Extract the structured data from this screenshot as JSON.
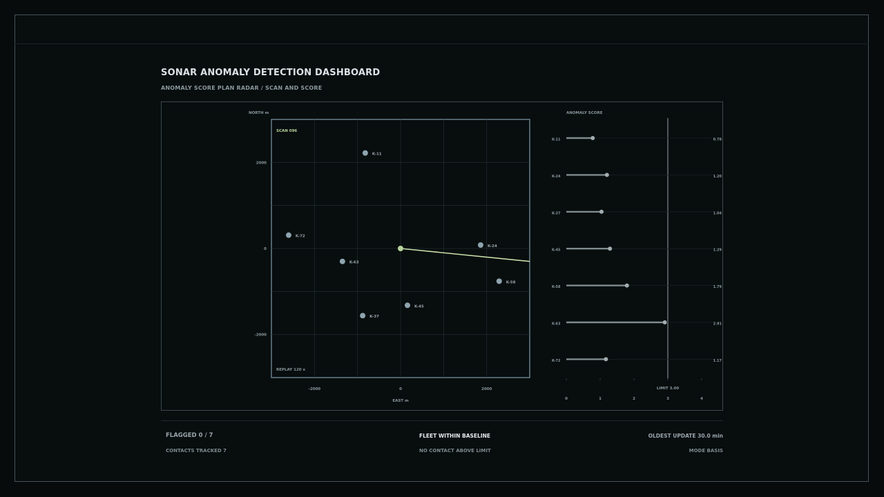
{
  "header": {
    "title": "SONAR ANOMALY DETECTION DASHBOARD",
    "subtitle": "ANOMALY SCORE PLAN RADAR / SCAN AND SCORE"
  },
  "radar": {
    "scan_label": "SCAN 096",
    "replay_label": "REPLAY 120 x"
  },
  "footer": {
    "flagged": "FLAGGED 0 / 7",
    "contacts_tracked": "CONTACTS TRACKED 7",
    "fleet_status": "FLEET WITHIN BASELINE",
    "no_contact": "NO CONTACT ABOVE LIMIT",
    "oldest_update": "OLDEST UPDATE 30.0 min",
    "mode": "MODE BASIS"
  },
  "colors": {
    "background": "#080d0e",
    "contact_dot": "#8ea4ae",
    "own_ship": "#b7d49b",
    "sweep_line": "#c8e0ab",
    "score_bar": "#7f8b8f",
    "limit_line": "#9aa3a6"
  },
  "chart_data": [
    {
      "type": "scatter",
      "xlabel": "EAST m",
      "ylabel": "NORTH m",
      "xlim": [
        -3000,
        3000
      ],
      "ylim": [
        -3000,
        3000
      ],
      "x_ticks": [
        "-2000",
        "0",
        "2000"
      ],
      "x_tick_values": [
        -2000,
        0,
        2000
      ],
      "y_ticks": [
        "2000",
        "0",
        "-2000"
      ],
      "y_tick_values": [
        2000,
        0,
        -2000
      ],
      "grid": true,
      "own_ship": {
        "x": 0,
        "y": 0
      },
      "sweep_end": {
        "x": 3000,
        "y": -300
      },
      "points": [
        {
          "label": "K-11",
          "x": -820,
          "y": 2220
        },
        {
          "label": "K-72",
          "x": -2600,
          "y": 310
        },
        {
          "label": "K-63",
          "x": -1350,
          "y": -300
        },
        {
          "label": "K-24",
          "x": 1860,
          "y": 80
        },
        {
          "label": "K-58",
          "x": 2290,
          "y": -760
        },
        {
          "label": "K-45",
          "x": 160,
          "y": -1320
        },
        {
          "label": "K-37",
          "x": -880,
          "y": -1560
        }
      ]
    },
    {
      "type": "bar",
      "title": "ANOMALY SCORE",
      "orientation": "horizontal",
      "categories": [
        "K-11",
        "K-24",
        "K-37",
        "K-45",
        "K-58",
        "K-63",
        "K-72"
      ],
      "values": [
        0.78,
        1.2,
        1.04,
        1.29,
        1.79,
        2.91,
        1.17
      ],
      "value_labels": [
        "0.78",
        "1.20",
        "1.04",
        "1.29",
        "1.79",
        "2.91",
        "1.17"
      ],
      "xlim": [
        0,
        4
      ],
      "x_ticks": [
        "0",
        "1",
        "2",
        "3",
        "4"
      ],
      "limit": 3.0,
      "limit_label": "LIMIT 3.00"
    }
  ]
}
